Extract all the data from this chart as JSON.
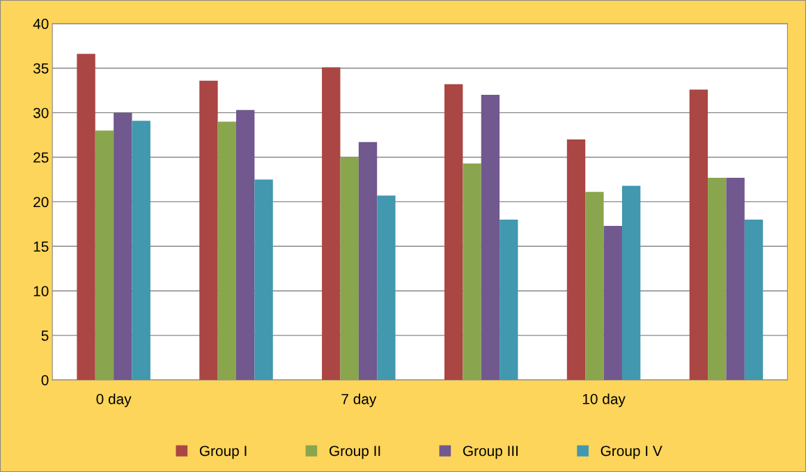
{
  "chart_data": {
    "type": "bar",
    "categories": [
      "0 day",
      null,
      "7 day",
      null,
      "10 day",
      null
    ],
    "series": [
      {
        "name": "Group I",
        "color": "#aa4643",
        "values": [
          36.6,
          33.6,
          35.1,
          33.2,
          27.0,
          32.6
        ]
      },
      {
        "name": "Group II",
        "color": "#89a54e",
        "values": [
          28.0,
          29.0,
          25.0,
          24.3,
          21.1,
          22.7
        ]
      },
      {
        "name": "Group III",
        "color": "#71588f",
        "values": [
          30.0,
          30.3,
          26.7,
          32.0,
          17.3,
          22.7
        ]
      },
      {
        "name": "Group I V",
        "color": "#4198af",
        "values": [
          29.1,
          22.5,
          20.7,
          18.0,
          21.8,
          18.0
        ]
      }
    ],
    "ylim": [
      0,
      40
    ],
    "yticks": [
      0,
      5,
      10,
      15,
      20,
      25,
      30,
      35,
      40
    ],
    "grid": "y",
    "legend": "bottom"
  }
}
